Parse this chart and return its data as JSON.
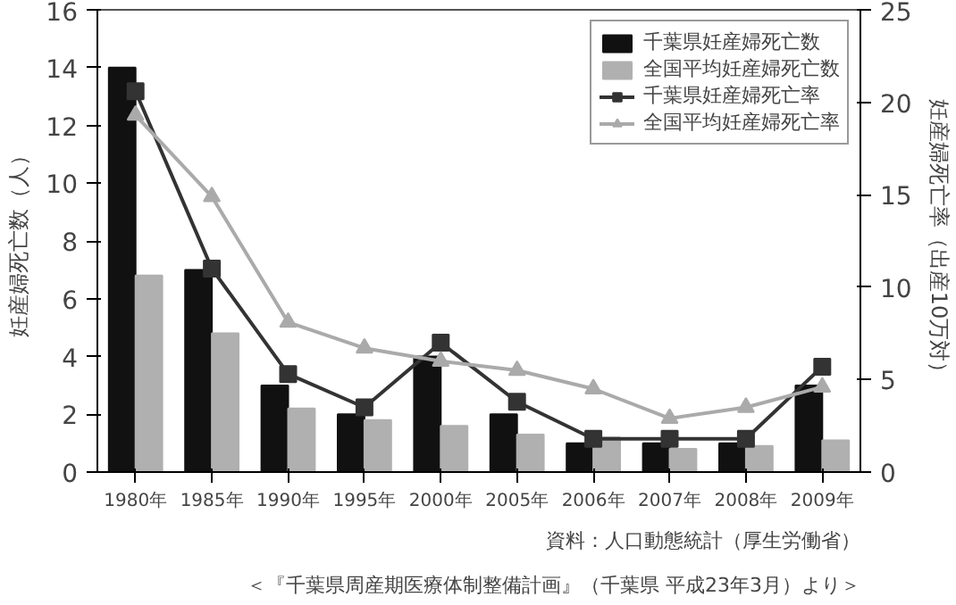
{
  "chart_data": {
    "type": "bar",
    "categories": [
      "1980年",
      "1985年",
      "1990年",
      "1995年",
      "2000年",
      "2005年",
      "2006年",
      "2007年",
      "2008年",
      "2009年"
    ],
    "ylabel": "妊産婦死亡数（人）",
    "y2label": "妊産婦死亡率（出産10万対）",
    "ylim": [
      0,
      16
    ],
    "yticks": [
      0,
      2,
      4,
      6,
      8,
      10,
      12,
      14,
      16
    ],
    "y2lim": [
      0,
      25
    ],
    "y2ticks": [
      0,
      5,
      10,
      15,
      20,
      25
    ],
    "series": [
      {
        "name": "千葉県妊産婦死亡数",
        "color": "#111111",
        "values": [
          14,
          7,
          3,
          2,
          4,
          2,
          1,
          1,
          1,
          3
        ]
      },
      {
        "name": "全国平均妊産婦死亡数",
        "color": "#b0b0b0",
        "values": [
          6.8,
          4.8,
          2.2,
          1.8,
          1.6,
          1.3,
          1.2,
          0.8,
          0.9,
          1.1
        ]
      },
      {
        "name": "千葉県妊産婦死亡率",
        "type": "line",
        "axis": "y2",
        "marker": "square",
        "color": "#333333",
        "values": [
          20.6,
          11.0,
          5.3,
          3.5,
          7.0,
          3.8,
          1.8,
          1.8,
          1.8,
          5.7
        ]
      },
      {
        "name": "全国平均妊産婦死亡率",
        "type": "line",
        "axis": "y2",
        "marker": "triangle",
        "color": "#aaaaaa",
        "values": [
          19.3,
          14.9,
          8.1,
          6.7,
          6.0,
          5.5,
          4.5,
          2.9,
          3.5,
          4.6
        ]
      }
    ],
    "legend": "top right",
    "annotations": [
      "資料：人口動態統計（厚生労働省）",
      "＜『千葉県周産期医療体制整備計画』（千葉県 平成23年3月）より＞"
    ]
  }
}
